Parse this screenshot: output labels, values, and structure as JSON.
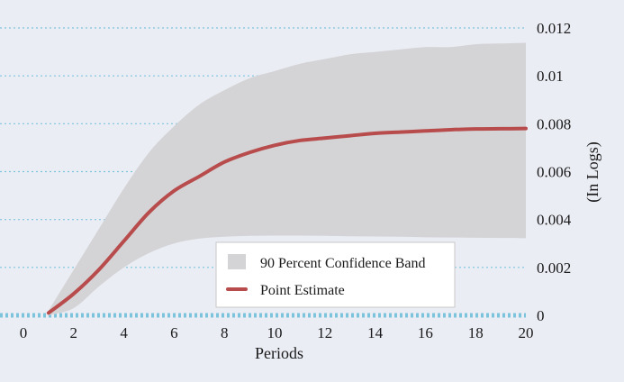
{
  "chart_data": {
    "type": "area",
    "xlabel": "Periods",
    "ylabel": "(In Logs)",
    "xlim": [
      0,
      20
    ],
    "ylim": [
      0,
      0.012
    ],
    "x_ticks": [
      "0",
      "2",
      "4",
      "6",
      "8",
      "10",
      "12",
      "14",
      "16",
      "18",
      "20"
    ],
    "y_ticks": [
      "0",
      "0.002",
      "0.004",
      "0.006",
      "0.008",
      "0.01",
      "0.012"
    ],
    "y_axis_side": "right",
    "grid": "horizontal dotted",
    "legend_position": "bottom-center",
    "series": [
      {
        "name": "90 Percent Confidence Band",
        "kind": "band",
        "color": "#d4d4d6",
        "x": [
          1,
          2,
          3,
          4,
          5,
          6,
          7,
          8,
          9,
          10,
          11,
          12,
          13,
          14,
          15,
          16,
          17,
          18,
          19,
          20
        ],
        "lower": [
          0.0,
          0.0003,
          0.0012,
          0.002,
          0.0026,
          0.003,
          0.0032,
          0.00328,
          0.00332,
          0.00333,
          0.00333,
          0.00332,
          0.0033,
          0.00329,
          0.00328,
          0.00326,
          0.00325,
          0.00324,
          0.00323,
          0.00322
        ],
        "upper": [
          0.0002,
          0.0019,
          0.0036,
          0.0053,
          0.0068,
          0.0079,
          0.0088,
          0.0094,
          0.0099,
          0.0102,
          0.0105,
          0.0107,
          0.0109,
          0.011,
          0.0111,
          0.0112,
          0.0112,
          0.01132,
          0.01135,
          0.01138
        ]
      },
      {
        "name": "Point Estimate",
        "kind": "line",
        "color": "#b84c4c",
        "x": [
          1,
          2,
          3,
          4,
          5,
          6,
          7,
          8,
          9,
          10,
          11,
          12,
          13,
          14,
          15,
          16,
          17,
          18,
          19,
          20
        ],
        "values": [
          0.0001,
          0.0009,
          0.0019,
          0.0031,
          0.0043,
          0.0052,
          0.0058,
          0.0064,
          0.0068,
          0.0071,
          0.0073,
          0.0074,
          0.0075,
          0.0076,
          0.00765,
          0.0077,
          0.00775,
          0.00778,
          0.00779,
          0.0078
        ]
      }
    ],
    "colors": {
      "background": "#ebedf5",
      "grid": "#7cc4dc",
      "band": "#d4d4d6",
      "line": "#b84c4c"
    }
  }
}
